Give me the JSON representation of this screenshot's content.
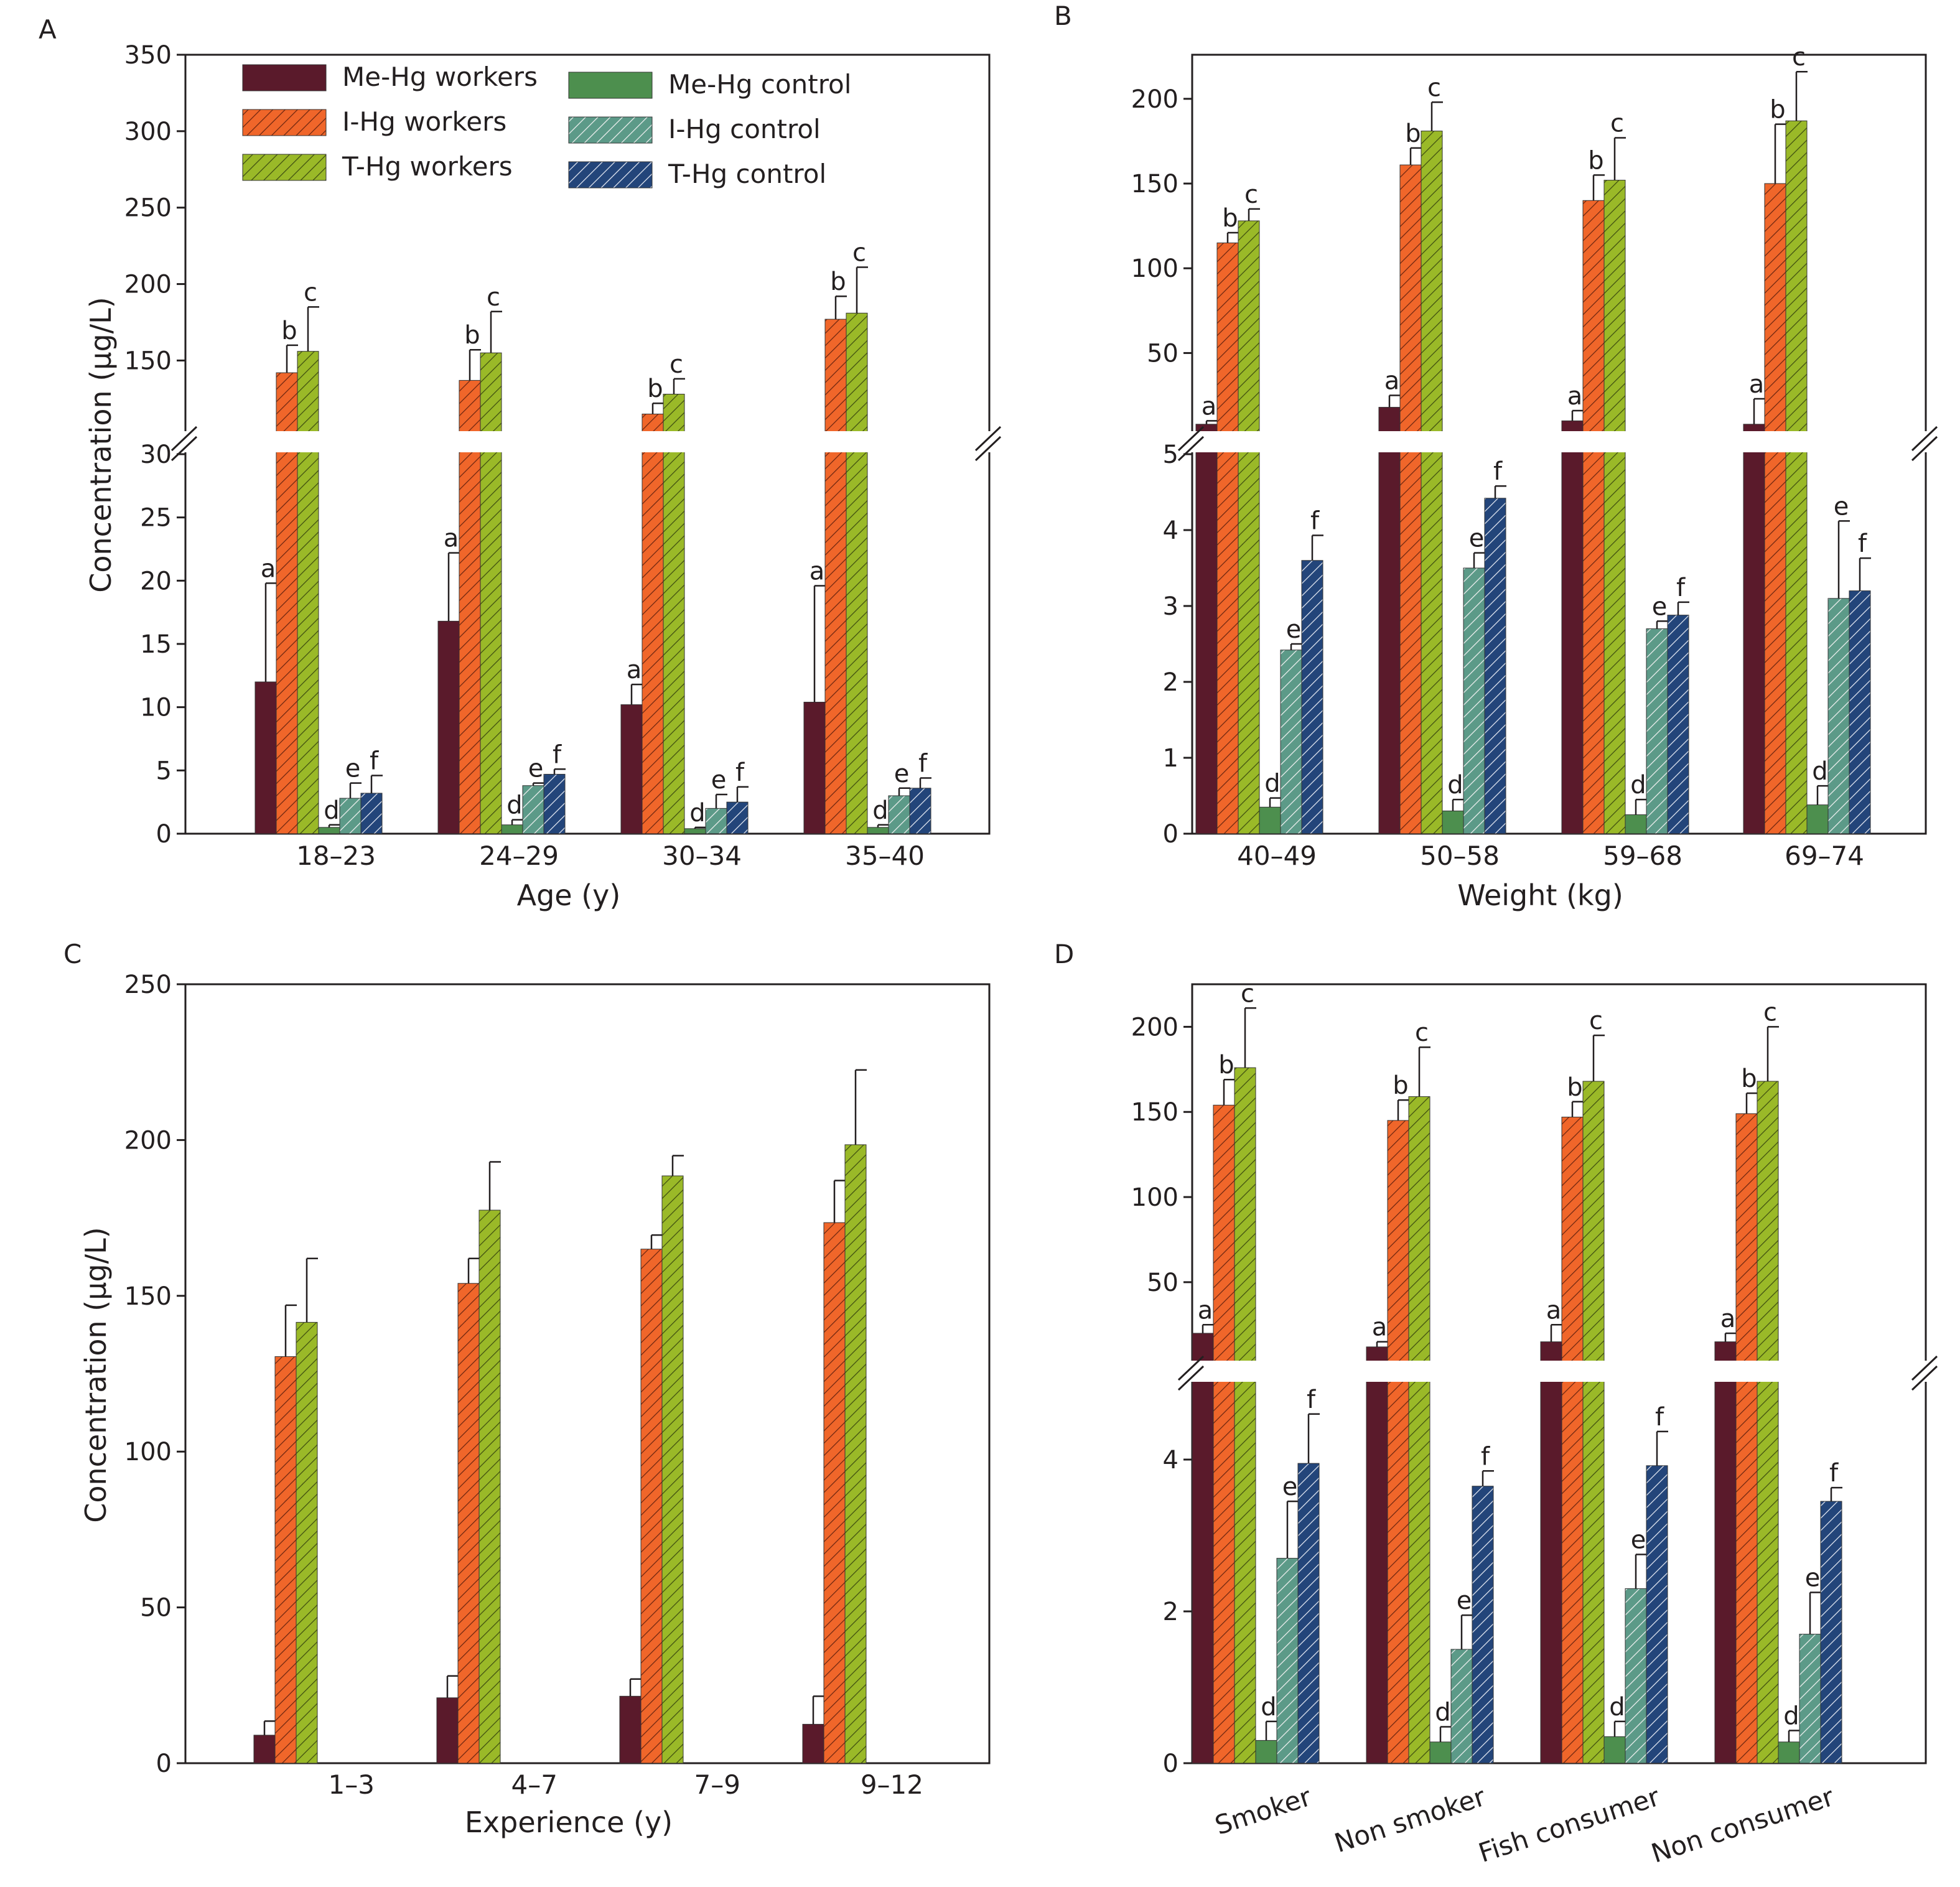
{
  "colors": {
    "me_workers": "#5a1a2b",
    "i_workers": "#f0662a",
    "t_workers": "#9ab928",
    "me_control": "#4d8f4e",
    "i_control": "#5c9a88",
    "t_control": "#23457a",
    "axis": "#231f20"
  },
  "series_names": [
    "Me-Hg workers",
    "I-Hg workers",
    "T-Hg workers",
    "Me-Hg control",
    "I-Hg control",
    "T-Hg control"
  ],
  "legend": {
    "items": [
      {
        "key": "me_workers",
        "label": "Me-Hg workers"
      },
      {
        "key": "i_workers",
        "label": "I-Hg workers"
      },
      {
        "key": "t_workers",
        "label": "T-Hg workers"
      },
      {
        "key": "me_control",
        "label": "Me-Hg control"
      },
      {
        "key": "i_control",
        "label": "I-Hg control"
      },
      {
        "key": "t_control",
        "label": "T-Hg control"
      }
    ]
  },
  "chart_data": [
    {
      "panel": "A",
      "type": "bar",
      "xlabel": "Age (y)",
      "ylabel": "Concentration (µg/L)",
      "categories": [
        "18–23",
        "24–29",
        "30–34",
        "35–40"
      ],
      "broken_axis": true,
      "lower_ylim": [
        0,
        30
      ],
      "lower_ticks": [
        0,
        5,
        10,
        15,
        20,
        25,
        30
      ],
      "upper_ylim": [
        105,
        350
      ],
      "upper_ticks": [
        150,
        200,
        250,
        300,
        350
      ],
      "legend_position": "top-left",
      "series": [
        {
          "key": "me_workers",
          "values": [
            12,
            16.8,
            10.2,
            10.4
          ],
          "errors": [
            7.8,
            5.4,
            1.6,
            9.2
          ],
          "label": "a"
        },
        {
          "key": "i_workers",
          "values": [
            142,
            137,
            115,
            177
          ],
          "errors": [
            18,
            20,
            7,
            15
          ],
          "label": "b"
        },
        {
          "key": "t_workers",
          "values": [
            156,
            155,
            128,
            181
          ],
          "errors": [
            29,
            27,
            10,
            30
          ],
          "label": "c"
        },
        {
          "key": "me_control",
          "values": [
            0.5,
            0.7,
            0.4,
            0.5
          ],
          "errors": [
            0.2,
            0.4,
            0.1,
            0.2
          ],
          "label": "d"
        },
        {
          "key": "i_control",
          "values": [
            2.8,
            3.8,
            2.0,
            3.0
          ],
          "errors": [
            1.2,
            0.2,
            1.1,
            0.6
          ],
          "label": "e"
        },
        {
          "key": "t_control",
          "values": [
            3.2,
            4.7,
            2.5,
            3.6
          ],
          "errors": [
            1.4,
            0.4,
            1.2,
            0.8
          ],
          "label": "f"
        }
      ]
    },
    {
      "panel": "B",
      "type": "bar",
      "xlabel": "Weight (kg)",
      "ylabel": "",
      "categories": [
        "40–49",
        "50–58",
        "59–68",
        "69–74"
      ],
      "broken_axis": true,
      "lower_ylim": [
        0,
        5
      ],
      "lower_ticks": [
        0,
        1,
        2,
        3,
        4,
        5
      ],
      "upper_ylim": [
        5,
        226
      ],
      "upper_ticks": [
        50,
        100,
        150,
        200
      ],
      "series": [
        {
          "key": "me_workers",
          "values": [
            8,
            18,
            10,
            8
          ],
          "errors": [
            2,
            7,
            6,
            15
          ],
          "label": "a"
        },
        {
          "key": "i_workers",
          "values": [
            115,
            161,
            140,
            150
          ],
          "errors": [
            6,
            10,
            15,
            35
          ],
          "label": "b"
        },
        {
          "key": "t_workers",
          "values": [
            128,
            181,
            152,
            187
          ],
          "errors": [
            7,
            17,
            25,
            29
          ],
          "label": "c"
        },
        {
          "key": "me_control",
          "values": [
            0.35,
            0.3,
            0.25,
            0.38
          ],
          "errors": [
            0.12,
            0.15,
            0.2,
            0.25
          ],
          "label": "d"
        },
        {
          "key": "i_control",
          "values": [
            2.42,
            3.5,
            2.7,
            3.1
          ],
          "errors": [
            0.08,
            0.2,
            0.1,
            1.02
          ],
          "label": "e"
        },
        {
          "key": "t_control",
          "values": [
            3.6,
            4.42,
            2.88,
            3.2
          ],
          "errors": [
            0.33,
            0.16,
            0.17,
            0.43
          ],
          "label": "f"
        }
      ]
    },
    {
      "panel": "C",
      "type": "bar",
      "xlabel": "Experience (y)",
      "ylabel": "Concentration (µg/L)",
      "categories": [
        "1–3",
        "4–7",
        "7–9",
        "9–12"
      ],
      "broken_axis": false,
      "ylim": [
        0,
        250
      ],
      "ticks": [
        0,
        50,
        100,
        150,
        200,
        250
      ],
      "series": [
        {
          "key": "me_workers",
          "values": [
            9,
            21,
            21.5,
            12.5
          ],
          "errors": [
            4.5,
            7,
            5.5,
            9
          ]
        },
        {
          "key": "i_workers",
          "values": [
            130.5,
            154,
            165,
            173.5
          ],
          "errors": [
            16.5,
            8,
            4.5,
            13.5
          ]
        },
        {
          "key": "t_workers",
          "values": [
            141.5,
            177.5,
            188.5,
            198.5
          ],
          "errors": [
            20.5,
            15.5,
            6.5,
            24
          ]
        }
      ]
    },
    {
      "panel": "D",
      "type": "bar",
      "xlabel": "",
      "ylabel": "",
      "categories": [
        "Smoker",
        "Non smoker",
        "Fish consumer",
        "Non consumer"
      ],
      "broken_axis": true,
      "lower_ylim": [
        0,
        5
      ],
      "lower_ticks": [
        0,
        2,
        4
      ],
      "upper_ylim": [
        5,
        225
      ],
      "upper_ticks": [
        50,
        100,
        150,
        200
      ],
      "series": [
        {
          "key": "me_workers",
          "values": [
            20,
            12,
            15,
            15
          ],
          "errors": [
            5,
            3,
            10,
            5
          ],
          "label": "a"
        },
        {
          "key": "i_workers",
          "values": [
            154,
            145,
            147,
            149
          ],
          "errors": [
            15,
            12,
            9,
            12
          ],
          "label": "b"
        },
        {
          "key": "t_workers",
          "values": [
            176,
            159,
            168,
            168
          ],
          "errors": [
            35,
            29,
            27,
            32
          ],
          "label": "c"
        },
        {
          "key": "me_control",
          "values": [
            0.3,
            0.28,
            0.35,
            0.28
          ],
          "errors": [
            0.25,
            0.2,
            0.2,
            0.15
          ],
          "label": "d"
        },
        {
          "key": "i_control",
          "values": [
            2.7,
            1.5,
            2.3,
            1.7
          ],
          "errors": [
            0.75,
            0.45,
            0.45,
            0.55
          ],
          "label": "e"
        },
        {
          "key": "t_control",
          "values": [
            3.95,
            3.65,
            3.92,
            3.45
          ],
          "errors": [
            0.65,
            0.2,
            0.45,
            0.18
          ],
          "label": "f"
        }
      ]
    }
  ]
}
